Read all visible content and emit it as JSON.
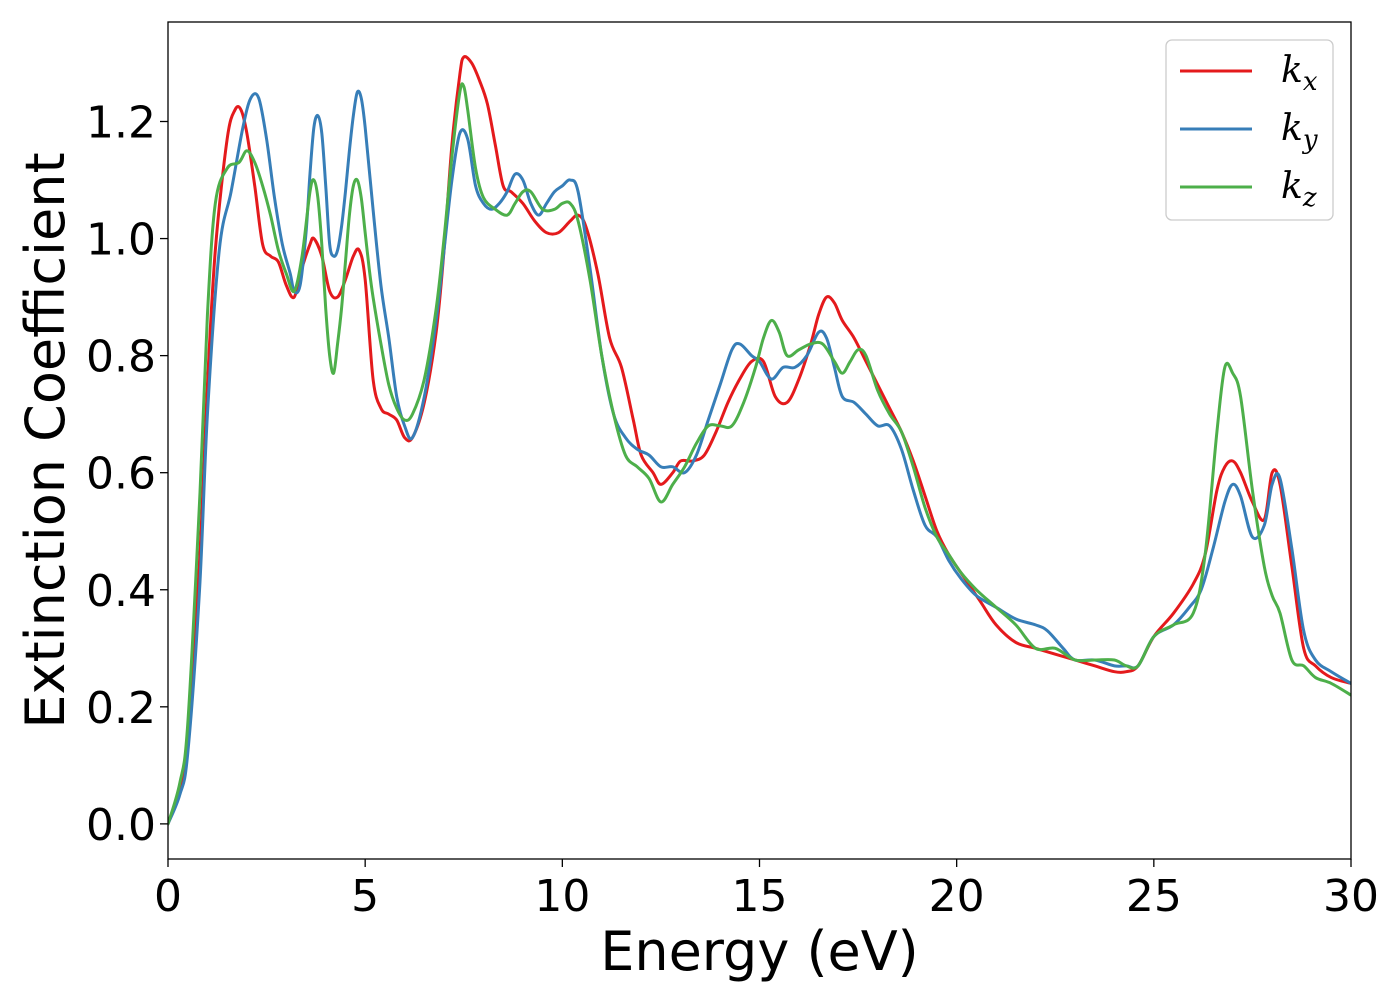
{
  "chart_data": {
    "type": "line",
    "title": "",
    "xlabel": "Energy (eV)",
    "ylabel": "Extinction Coefficient",
    "xlim": [
      0,
      30
    ],
    "ylim": [
      -0.06,
      1.37
    ],
    "xticks": [
      0,
      5,
      10,
      15,
      20,
      25,
      30
    ],
    "xtick_labels": [
      "0",
      "5",
      "10",
      "15",
      "20",
      "25",
      "30"
    ],
    "yticks": [
      0.0,
      0.2,
      0.4,
      0.6,
      0.8,
      1.0,
      1.2
    ],
    "ytick_labels": [
      "0.0",
      "0.2",
      "0.4",
      "0.6",
      "0.8",
      "1.0",
      "1.2"
    ],
    "grid": false,
    "legend_position": "top-right",
    "series": [
      {
        "name": "k",
        "subscript": "x",
        "color": "#e41a1c",
        "x": [
          0,
          0.3,
          0.5,
          0.8,
          1.0,
          1.2,
          1.5,
          1.7,
          1.85,
          2.0,
          2.2,
          2.4,
          2.6,
          2.8,
          3.0,
          3.2,
          3.4,
          3.6,
          3.7,
          3.9,
          4.1,
          4.3,
          4.5,
          4.7,
          4.85,
          5.0,
          5.2,
          5.4,
          5.6,
          5.8,
          6.0,
          6.2,
          6.5,
          6.8,
          7.0,
          7.2,
          7.4,
          7.5,
          7.7,
          7.9,
          8.1,
          8.3,
          8.5,
          8.7,
          9.0,
          9.3,
          9.6,
          9.9,
          10.2,
          10.4,
          10.6,
          10.9,
          11.2,
          11.5,
          11.8,
          12.0,
          12.3,
          12.5,
          12.8,
          13.0,
          13.3,
          13.6,
          13.9,
          14.2,
          14.5,
          14.8,
          15.1,
          15.4,
          15.7,
          16.0,
          16.3,
          16.5,
          16.7,
          16.9,
          17.1,
          17.4,
          17.7,
          18.0,
          18.3,
          18.6,
          18.9,
          19.2,
          19.5,
          19.8,
          20.2,
          20.6,
          21.0,
          21.5,
          22.0,
          22.5,
          23.0,
          23.5,
          24.0,
          24.3,
          24.6,
          25.0,
          25.5,
          26.0,
          26.3,
          26.6,
          26.8,
          27.0,
          27.2,
          27.5,
          27.8,
          28.0,
          28.2,
          28.5,
          28.8,
          29.1,
          29.5,
          30.0
        ],
        "y": [
          0.0,
          0.06,
          0.15,
          0.45,
          0.75,
          0.98,
          1.17,
          1.22,
          1.22,
          1.18,
          1.09,
          0.99,
          0.97,
          0.96,
          0.92,
          0.9,
          0.95,
          0.99,
          1.0,
          0.97,
          0.91,
          0.9,
          0.93,
          0.97,
          0.98,
          0.93,
          0.76,
          0.71,
          0.7,
          0.69,
          0.66,
          0.66,
          0.72,
          0.84,
          0.98,
          1.16,
          1.28,
          1.31,
          1.3,
          1.27,
          1.23,
          1.16,
          1.09,
          1.08,
          1.06,
          1.03,
          1.01,
          1.01,
          1.03,
          1.04,
          1.02,
          0.94,
          0.83,
          0.78,
          0.69,
          0.63,
          0.6,
          0.58,
          0.6,
          0.62,
          0.62,
          0.63,
          0.67,
          0.72,
          0.76,
          0.79,
          0.79,
          0.73,
          0.72,
          0.76,
          0.82,
          0.87,
          0.9,
          0.89,
          0.86,
          0.83,
          0.79,
          0.75,
          0.71,
          0.67,
          0.62,
          0.56,
          0.5,
          0.46,
          0.42,
          0.38,
          0.34,
          0.31,
          0.3,
          0.29,
          0.28,
          0.27,
          0.26,
          0.26,
          0.27,
          0.32,
          0.36,
          0.41,
          0.46,
          0.57,
          0.61,
          0.62,
          0.6,
          0.55,
          0.52,
          0.6,
          0.58,
          0.44,
          0.3,
          0.27,
          0.25,
          0.24
        ]
      },
      {
        "name": "k",
        "subscript": "y",
        "color": "#377eb8",
        "x": [
          0,
          0.3,
          0.5,
          0.8,
          1.0,
          1.3,
          1.6,
          1.9,
          2.1,
          2.3,
          2.5,
          2.7,
          2.9,
          3.1,
          3.2,
          3.35,
          3.5,
          3.6,
          3.7,
          3.8,
          3.9,
          4.0,
          4.1,
          4.2,
          4.3,
          4.4,
          4.5,
          4.6,
          4.7,
          4.8,
          4.9,
          5.0,
          5.2,
          5.4,
          5.6,
          5.8,
          6.0,
          6.2,
          6.5,
          6.8,
          7.0,
          7.2,
          7.4,
          7.6,
          7.8,
          8.0,
          8.2,
          8.4,
          8.6,
          8.8,
          9.0,
          9.2,
          9.4,
          9.6,
          9.8,
          10.0,
          10.2,
          10.4,
          10.7,
          11.0,
          11.3,
          11.6,
          11.9,
          12.2,
          12.5,
          12.8,
          13.1,
          13.4,
          13.7,
          14.0,
          14.3,
          14.5,
          14.8,
          15.0,
          15.3,
          15.6,
          15.9,
          16.2,
          16.5,
          16.7,
          16.9,
          17.1,
          17.4,
          17.7,
          18.0,
          18.3,
          18.6,
          18.9,
          19.2,
          19.5,
          19.8,
          20.1,
          20.5,
          21.0,
          21.5,
          22.0,
          22.3,
          22.7,
          23.0,
          23.5,
          24.0,
          24.3,
          24.6,
          25.0,
          25.5,
          25.9,
          26.2,
          26.5,
          26.8,
          27.0,
          27.2,
          27.5,
          27.8,
          28.0,
          28.2,
          28.5,
          28.8,
          29.1,
          29.5,
          30.0
        ],
        "y": [
          0.0,
          0.05,
          0.12,
          0.4,
          0.7,
          0.98,
          1.08,
          1.19,
          1.24,
          1.24,
          1.17,
          1.07,
          0.99,
          0.94,
          0.91,
          0.92,
          1.01,
          1.11,
          1.19,
          1.21,
          1.18,
          1.09,
          0.99,
          0.97,
          0.98,
          1.02,
          1.08,
          1.15,
          1.21,
          1.25,
          1.24,
          1.19,
          1.05,
          0.92,
          0.83,
          0.73,
          0.68,
          0.66,
          0.73,
          0.86,
          0.98,
          1.1,
          1.18,
          1.17,
          1.09,
          1.06,
          1.05,
          1.06,
          1.08,
          1.11,
          1.1,
          1.06,
          1.04,
          1.06,
          1.08,
          1.09,
          1.1,
          1.08,
          0.95,
          0.8,
          0.7,
          0.66,
          0.64,
          0.63,
          0.61,
          0.61,
          0.6,
          0.63,
          0.69,
          0.75,
          0.81,
          0.82,
          0.8,
          0.79,
          0.76,
          0.78,
          0.78,
          0.8,
          0.84,
          0.83,
          0.78,
          0.73,
          0.72,
          0.7,
          0.68,
          0.68,
          0.64,
          0.57,
          0.51,
          0.49,
          0.45,
          0.42,
          0.39,
          0.37,
          0.35,
          0.34,
          0.33,
          0.3,
          0.28,
          0.28,
          0.27,
          0.27,
          0.27,
          0.32,
          0.34,
          0.37,
          0.4,
          0.47,
          0.55,
          0.58,
          0.56,
          0.49,
          0.51,
          0.58,
          0.59,
          0.47,
          0.33,
          0.28,
          0.26,
          0.24
        ]
      },
      {
        "name": "k",
        "subscript": "z",
        "color": "#4daf4a",
        "x": [
          0,
          0.3,
          0.5,
          0.8,
          1.0,
          1.2,
          1.5,
          1.8,
          2.0,
          2.2,
          2.4,
          2.6,
          2.8,
          3.0,
          3.2,
          3.4,
          3.6,
          3.7,
          3.8,
          3.9,
          4.0,
          4.1,
          4.2,
          4.3,
          4.4,
          4.5,
          4.6,
          4.7,
          4.8,
          4.9,
          5.0,
          5.1,
          5.2,
          5.4,
          5.6,
          5.8,
          6.0,
          6.2,
          6.5,
          6.8,
          7.0,
          7.2,
          7.4,
          7.5,
          7.6,
          7.8,
          8.0,
          8.3,
          8.6,
          8.8,
          9.0,
          9.2,
          9.5,
          9.8,
          10.0,
          10.2,
          10.4,
          10.7,
          11.0,
          11.3,
          11.6,
          11.9,
          12.2,
          12.5,
          12.8,
          13.1,
          13.4,
          13.7,
          14.0,
          14.3,
          14.6,
          14.9,
          15.1,
          15.3,
          15.5,
          15.7,
          16.0,
          16.3,
          16.6,
          16.9,
          17.1,
          17.3,
          17.5,
          17.7,
          18.0,
          18.3,
          18.6,
          18.9,
          19.2,
          19.5,
          19.8,
          20.1,
          20.5,
          21.0,
          21.5,
          22.0,
          22.5,
          23.0,
          23.5,
          24.0,
          24.3,
          24.6,
          25.0,
          25.5,
          26.0,
          26.3,
          26.6,
          26.8,
          27.0,
          27.2,
          27.5,
          27.8,
          28.0,
          28.2,
          28.5,
          28.8,
          29.1,
          29.5,
          30.0
        ],
        "y": [
          0.0,
          0.07,
          0.17,
          0.55,
          0.87,
          1.06,
          1.12,
          1.13,
          1.15,
          1.13,
          1.09,
          1.04,
          0.98,
          0.94,
          0.91,
          0.97,
          1.08,
          1.1,
          1.07,
          0.99,
          0.88,
          0.8,
          0.77,
          0.82,
          0.88,
          0.96,
          1.04,
          1.09,
          1.1,
          1.07,
          1.01,
          0.95,
          0.9,
          0.82,
          0.75,
          0.71,
          0.69,
          0.7,
          0.76,
          0.88,
          1.0,
          1.14,
          1.25,
          1.26,
          1.22,
          1.12,
          1.07,
          1.05,
          1.04,
          1.06,
          1.08,
          1.08,
          1.05,
          1.05,
          1.06,
          1.06,
          1.03,
          0.93,
          0.8,
          0.7,
          0.63,
          0.61,
          0.59,
          0.55,
          0.58,
          0.61,
          0.65,
          0.68,
          0.68,
          0.68,
          0.72,
          0.78,
          0.83,
          0.86,
          0.84,
          0.8,
          0.81,
          0.82,
          0.82,
          0.79,
          0.77,
          0.79,
          0.81,
          0.8,
          0.74,
          0.7,
          0.67,
          0.61,
          0.54,
          0.49,
          0.46,
          0.43,
          0.4,
          0.37,
          0.34,
          0.3,
          0.3,
          0.28,
          0.28,
          0.28,
          0.27,
          0.27,
          0.32,
          0.34,
          0.36,
          0.46,
          0.67,
          0.78,
          0.77,
          0.73,
          0.57,
          0.44,
          0.39,
          0.36,
          0.28,
          0.27,
          0.25,
          0.24,
          0.22
        ]
      }
    ]
  }
}
